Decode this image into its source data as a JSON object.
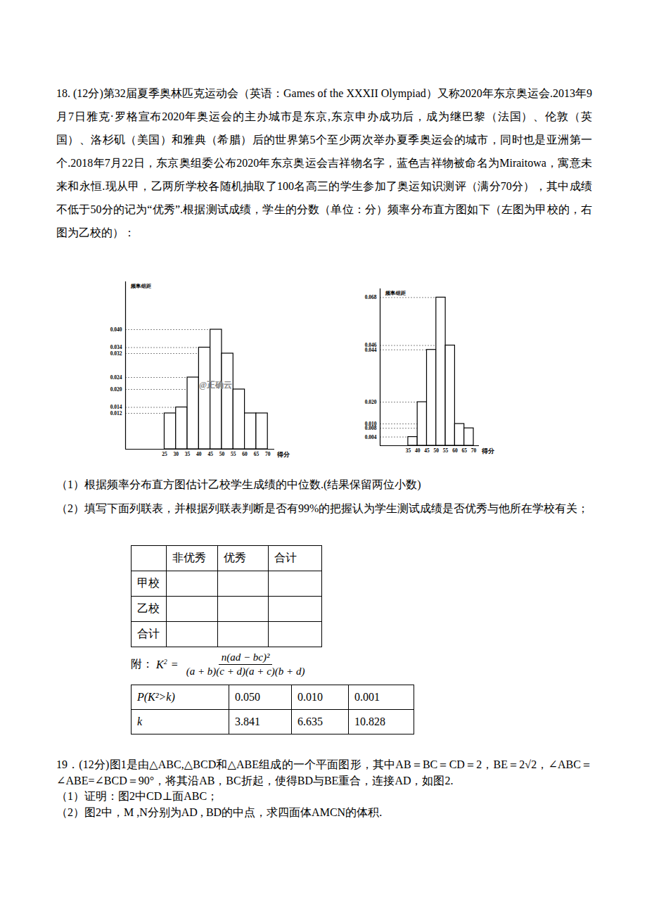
{
  "document": {
    "problem18": {
      "text": "18. (12分)第32届夏季奥林匹克运动会（英语：Games of the XXXII Olympiad）又称2020年东京奥运会.2013年9月7日雅克·罗格宣布2020年奥运会的主办城市是东京,东京申办成功后，成为继巴黎（法国）、伦敦（英国）、洛杉矶（美国）和雅典（希腊）后的世界第5个至少两次举办夏季奥运会的城市，同时也是亚洲第一个.2018年7月22日，东京奥组委公布2020年东京奥运会吉祥物名字，蓝色吉祥物被命名为Miraitowa，寓意未来和永恒.现从甲，乙两所学校各随机抽取了100名高三的学生参加了奥运知识测评（满分70分），其中成绩不低于50分的记为“优秀”.根据测试成绩，学生的分数（单位：分）频率分布直方图如下（左图为甲校的，右图为乙校的）：",
      "question1": "（1）根据频率分布直方图估计乙校学生成绩的中位数.(结果保留两位小数)",
      "question2": "（2）填写下面列联表，并根据列联表判断是否有99%的把握认为学生测试成绩是否优秀与他所在学校有关；",
      "contingency_table": {
        "rows": [
          [
            null,
            "非优秀",
            "优秀",
            "合计"
          ],
          [
            "甲校",
            null,
            null,
            null
          ],
          [
            "乙校",
            null,
            null,
            null
          ],
          [
            "合计",
            null,
            null,
            null
          ]
        ]
      },
      "formula": {
        "prefix": "附：",
        "lhs": "K",
        "lhs_sup": "2",
        "equals": "=",
        "numerator": "n(ad − bc)²",
        "denominator": "(a + b)(c + d)(a + c)(b + d)"
      },
      "critical_table": {
        "rows": [
          [
            "P(K²>k)",
            "0.050",
            "0.010",
            "0.001"
          ],
          [
            "k",
            "3.841",
            "6.635",
            "10.828"
          ]
        ]
      }
    },
    "problem19": {
      "text": "19．(12分)图1是由△ABC,△BCD和△ABE组成的一个平面图形，其中AB＝BC＝CD＝2，BE＝2√2，∠ABC＝∠ABE=∠BCD＝90°，将其沿AB，BC折起，使得BD与BE重合，连接AD，如图2.",
      "question1": "（1）证明：图2中CD⊥面ABC；",
      "question2": "（2）图2中，M ,N分别为AD , BD的中点，求四面体AMCN的体积."
    }
  },
  "chart_data": [
    {
      "type": "histogram",
      "y_label": "频率/组距",
      "x_label": "得分",
      "watermark": "@正确云",
      "bins": [
        25,
        30,
        35,
        40,
        45,
        50,
        55,
        60,
        65,
        70
      ],
      "counts": [
        0.012,
        0.014,
        0.024,
        0.034,
        0.04,
        0.032,
        0.02,
        0.012,
        0.012
      ],
      "xlim": [
        8,
        73
      ],
      "ylim": [
        0,
        0.056
      ],
      "xticks": [
        25,
        30,
        35,
        40,
        45,
        50,
        55,
        60,
        65,
        70
      ],
      "yticks": [
        0.012,
        0.014,
        {
          "value": 0.02,
          "label": "0.020"
        },
        0.024,
        0.032,
        0.034,
        {
          "value": 0.04,
          "label": "0.040"
        }
      ],
      "grid": true
    },
    {
      "type": "histogram",
      "y_label": "频率/组距",
      "x_label": "得分",
      "bins": [
        35,
        40,
        45,
        50,
        55,
        60,
        65,
        70
      ],
      "counts": [
        0.004,
        0.02,
        0.044,
        0.068,
        0.046,
        0.01,
        0.008
      ],
      "xlim": [
        20,
        73
      ],
      "ylim": [
        0,
        0.072
      ],
      "xticks": [
        35,
        40,
        45,
        50,
        55,
        60,
        65,
        70
      ],
      "yticks": [
        0.004,
        0.008,
        {
          "value": 0.01,
          "label": "0.010"
        },
        {
          "value": 0.02,
          "label": "0.020"
        },
        0.044,
        0.046,
        0.068
      ],
      "grid": true
    }
  ]
}
